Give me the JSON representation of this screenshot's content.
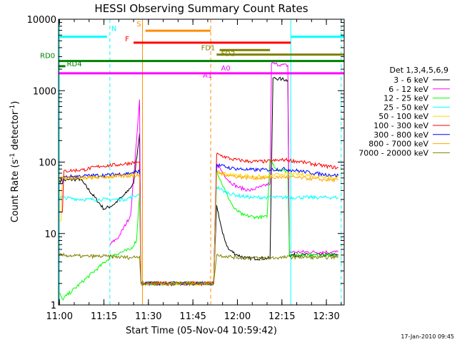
{
  "chart_data": {
    "type": "line",
    "title": "HESSI Observing Summary Count Rates",
    "xlabel": "Start Time (05-Nov-04 10:59:42)",
    "ylabel_main": "Count Rate (s",
    "ylabel_sup1": "-1",
    "ylabel_mid": " detector",
    "ylabel_sup2": "-1",
    "ylabel_end": ")",
    "yscale": "log",
    "xlim": [
      "10:59:42",
      "12:36:00"
    ],
    "ylim": [
      1,
      10000
    ],
    "grid": false,
    "x_ticks": [
      "11:00",
      "11:15",
      "11:30",
      "11:45",
      "12:00",
      "12:15",
      "12:30"
    ],
    "y_ticks": [
      {
        "value": 1,
        "label": "1"
      },
      {
        "value": 10,
        "label": "10"
      },
      {
        "value": 100,
        "label": "100"
      },
      {
        "value": 1000,
        "label": "1000"
      },
      {
        "value": 10000,
        "label": "10000"
      }
    ],
    "legend_title": "Det 1,3,4,5,6,9",
    "legend_position": "right",
    "timestamp": "17-Jan-2010 09:45",
    "series": [
      {
        "name": "3 - 6 keV",
        "color": "#000000",
        "points": [
          [
            "11:00",
            55
          ],
          [
            "11:07",
            58
          ],
          [
            "11:15",
            22
          ],
          [
            "11:18",
            25
          ],
          [
            "11:22",
            35
          ],
          [
            "11:25",
            50
          ],
          [
            "11:27",
            250
          ],
          [
            "11:27.5",
            2
          ],
          [
            "11:52",
            2
          ],
          [
            "11:53",
            25
          ],
          [
            "11:55",
            10
          ],
          [
            "11:57",
            6
          ],
          [
            "12:00",
            5
          ],
          [
            "12:03",
            4.5
          ],
          [
            "12:08",
            4.5
          ],
          [
            "12:11",
            4.5
          ],
          [
            "12:12",
            1500
          ],
          [
            "12:15",
            1450
          ],
          [
            "12:17",
            1400
          ],
          [
            "12:17.5",
            5
          ],
          [
            "12:34",
            5
          ]
        ]
      },
      {
        "name": "6 - 12 keV",
        "color": "#ff00ff",
        "points": [
          [
            "11:17",
            7
          ],
          [
            "11:20",
            9
          ],
          [
            "11:24",
            18
          ],
          [
            "11:26",
            200
          ],
          [
            "11:27",
            750
          ],
          [
            "11:27.5",
            2
          ],
          [
            "11:52",
            2
          ],
          [
            "11:53",
            95
          ],
          [
            "11:57",
            55
          ],
          [
            "12:00",
            45
          ],
          [
            "12:04",
            40
          ],
          [
            "12:08",
            45
          ],
          [
            "12:11",
            50
          ],
          [
            "12:11.5",
            2400
          ],
          [
            "12:15",
            2300
          ],
          [
            "12:17",
            2250
          ],
          [
            "12:17.5",
            5.5
          ],
          [
            "12:34",
            5.5
          ]
        ]
      },
      {
        "name": "12 - 25 keV",
        "color": "#00ff00",
        "points": [
          [
            "11:00",
            1.5
          ],
          [
            "11:01",
            1.2
          ],
          [
            "11:18",
            5
          ],
          [
            "11:24",
            6
          ],
          [
            "11:26",
            8
          ],
          [
            "11:27",
            35
          ],
          [
            "11:27.5",
            2
          ],
          [
            "11:52",
            2
          ],
          [
            "11:53",
            75
          ],
          [
            "11:56",
            38
          ],
          [
            "11:59",
            22
          ],
          [
            "12:02",
            18
          ],
          [
            "12:06",
            17
          ],
          [
            "12:10",
            17
          ],
          [
            "12:11",
            110
          ],
          [
            "12:13",
            80
          ],
          [
            "12:17",
            75
          ],
          [
            "12:17.5",
            5
          ],
          [
            "12:34",
            5
          ]
        ]
      },
      {
        "name": "25 - 50 keV",
        "color": "#00ffff",
        "points": [
          [
            "11:00",
            32
          ],
          [
            "11:08",
            30
          ],
          [
            "11:16",
            30
          ],
          [
            "11:22",
            30
          ],
          [
            "11:26",
            34
          ],
          [
            "11:27",
            36
          ],
          [
            "11:27.5",
            2
          ],
          [
            "11:52",
            2
          ],
          [
            "11:53",
            45
          ],
          [
            "11:56",
            38
          ],
          [
            "12:00",
            34
          ],
          [
            "12:05",
            32
          ],
          [
            "12:10",
            32
          ],
          [
            "12:15",
            32
          ],
          [
            "12:20",
            32
          ],
          [
            "12:34",
            32
          ]
        ]
      },
      {
        "name": "50 - 100 keV",
        "color": "#ffd700",
        "points": [
          [
            "11:00",
            15
          ],
          [
            "11:00.5",
            15
          ],
          [
            "11:01",
            62
          ],
          [
            "11:08",
            60
          ],
          [
            "11:16",
            62
          ],
          [
            "11:24",
            66
          ],
          [
            "11:27",
            72
          ],
          [
            "11:27.5",
            2
          ],
          [
            "11:52",
            2
          ],
          [
            "11:53",
            72
          ],
          [
            "11:58",
            66
          ],
          [
            "12:04",
            64
          ],
          [
            "12:10",
            62
          ],
          [
            "12:15",
            68
          ],
          [
            "12:20",
            68
          ],
          [
            "12:28",
            63
          ],
          [
            "12:34",
            60
          ]
        ]
      },
      {
        "name": "100 - 300 keV",
        "color": "#ff0000",
        "points": [
          [
            "11:00",
            20
          ],
          [
            "11:01",
            20
          ],
          [
            "11:01.5",
            75
          ],
          [
            "11:08",
            78
          ],
          [
            "11:14",
            88
          ],
          [
            "11:20",
            92
          ],
          [
            "11:26",
            100
          ],
          [
            "11:27",
            100
          ],
          [
            "11:27.5",
            2
          ],
          [
            "11:52",
            2
          ],
          [
            "11:53",
            130
          ],
          [
            "11:58",
            110
          ],
          [
            "12:04",
            102
          ],
          [
            "12:10",
            102
          ],
          [
            "12:16",
            108
          ],
          [
            "12:22",
            100
          ],
          [
            "12:28",
            90
          ],
          [
            "12:34",
            83
          ]
        ]
      },
      {
        "name": "300 - 800 keV",
        "color": "#0000ff",
        "points": [
          [
            "11:00",
            50
          ],
          [
            "11:01",
            50
          ],
          [
            "11:01.5",
            62
          ],
          [
            "11:08",
            64
          ],
          [
            "11:16",
            66
          ],
          [
            "11:24",
            70
          ],
          [
            "11:27",
            75
          ],
          [
            "11:27.5",
            2
          ],
          [
            "11:52",
            2
          ],
          [
            "11:53",
            92
          ],
          [
            "11:58",
            82
          ],
          [
            "12:04",
            78
          ],
          [
            "12:10",
            78
          ],
          [
            "12:16",
            80
          ],
          [
            "12:22",
            74
          ],
          [
            "12:28",
            68
          ],
          [
            "12:34",
            65
          ]
        ]
      },
      {
        "name": "800 - 7000 keV",
        "color": "#ffa500",
        "points": [
          [
            "11:00",
            60
          ],
          [
            "11:08",
            60
          ],
          [
            "11:16",
            62
          ],
          [
            "11:24",
            64
          ],
          [
            "11:27",
            66
          ],
          [
            "11:27.5",
            2
          ],
          [
            "11:52",
            2
          ],
          [
            "11:53",
            72
          ],
          [
            "11:58",
            64
          ],
          [
            "12:04",
            60
          ],
          [
            "12:10",
            60
          ],
          [
            "12:16",
            62
          ],
          [
            "12:22",
            60
          ],
          [
            "12:28",
            57
          ],
          [
            "12:34",
            56
          ]
        ]
      },
      {
        "name": "7000 - 20000 keV",
        "color": "#808000",
        "points": [
          [
            "11:00",
            5
          ],
          [
            "11:08",
            4.8
          ],
          [
            "11:16",
            4.8
          ],
          [
            "11:24",
            4.6
          ],
          [
            "11:27",
            4.8
          ],
          [
            "11:27.5",
            2
          ],
          [
            "11:52",
            2
          ],
          [
            "11:53",
            5
          ],
          [
            "12:00",
            4.6
          ],
          [
            "12:08",
            4.5
          ],
          [
            "12:14",
            4.6
          ],
          [
            "12:20",
            4.7
          ],
          [
            "12:28",
            4.6
          ],
          [
            "12:34",
            4.7
          ]
        ]
      }
    ],
    "flag_bars": [
      {
        "label": "N",
        "color": "#00ffff",
        "y": 5700,
        "start": "10:59:42",
        "end": "11:16",
        "label_at": "11:17",
        "label_side": "right",
        "label_dy": -6
      },
      {
        "label": "N",
        "color": "#00ffff",
        "y": 5700,
        "start": "12:18",
        "end": "12:36",
        "label_at": "",
        "label_side": "none"
      },
      {
        "label": "S",
        "color": "#ff8c00",
        "y": 6900,
        "start": "11:29",
        "end": "11:51",
        "label_at": "11:28",
        "label_side": "left",
        "label_dy": -4
      },
      {
        "label": "F",
        "color": "#ff0000",
        "y": 4700,
        "start": "11:25",
        "end": "12:18",
        "label_at": "11:24",
        "label_side": "left",
        "label_dy": 0
      },
      {
        "label": "FD1",
        "color": "#808000",
        "y": 3700,
        "start": "11:54",
        "end": "12:11",
        "label_at": "11:53",
        "label_side": "left",
        "label_dy": 2
      },
      {
        "label": "FD2",
        "color": "#808000",
        "y": 3200,
        "start": "11:53",
        "end": "12:36",
        "label_at": "11:54",
        "label_side": "right",
        "label_dy": 4
      },
      {
        "label": "RD0",
        "color": "#008000",
        "y": 2600,
        "start": "10:59:42",
        "end": "12:36",
        "label_at": "10:59",
        "label_side": "left",
        "label_dy": -2
      },
      {
        "label": "RD4",
        "color": "#008000",
        "y": 2200,
        "start": "10:59:42",
        "end": "11:02",
        "label_at": "11:02",
        "label_side": "right",
        "label_dy": 2
      },
      {
        "label": "A1",
        "color": "#ff00ff",
        "y": 1750,
        "start": "10:59:42",
        "end": "11:53",
        "label_at": "11:52",
        "label_side": "left",
        "label_dy": 8
      },
      {
        "label": "A0",
        "color": "#ff00ff",
        "y": 1750,
        "start": "11:53",
        "end": "12:36",
        "label_at": "11:54",
        "label_side": "right",
        "label_dy": -2
      }
    ],
    "vertical_lines": [
      {
        "x": "11:00",
        "color": "#00ffff",
        "style": "solid"
      },
      {
        "x": "11:17",
        "color": "#00ffff",
        "style": "dashed"
      },
      {
        "x": "11:28",
        "color": "#ff8c00",
        "style": "solid"
      },
      {
        "x": "11:51",
        "color": "#ff8c00",
        "style": "dashed"
      },
      {
        "x": "12:18",
        "color": "#00ffff",
        "style": "solid"
      },
      {
        "x": "12:35",
        "color": "#00ffff",
        "style": "dashed"
      }
    ]
  }
}
